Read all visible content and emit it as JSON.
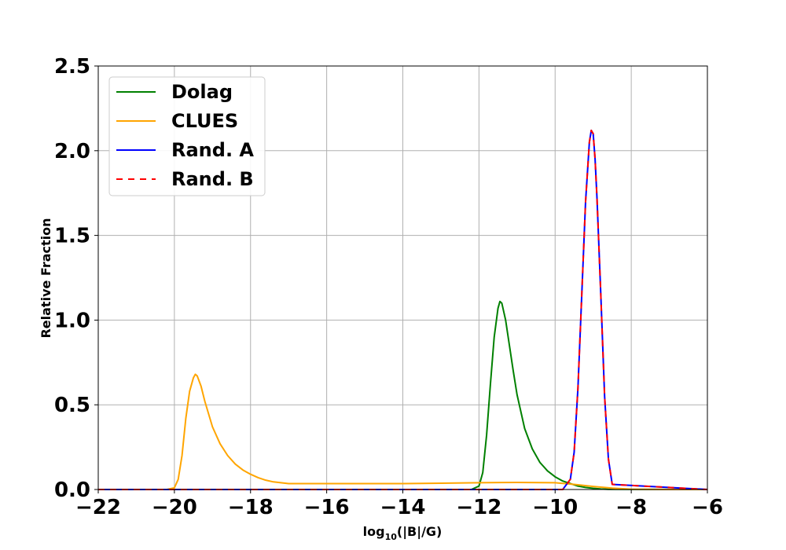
{
  "chart_data": {
    "type": "line",
    "title": "",
    "xlabel": "log10(|B|/G)",
    "xlabel_main": "log",
    "xlabel_sub": "10",
    "xlabel_rest": "(|B|/G)",
    "ylabel": "Relative Fraction",
    "xlim": [
      -22,
      -6
    ],
    "ylim": [
      0,
      2.5
    ],
    "xticks": [
      -22,
      -20,
      -18,
      -16,
      -14,
      -12,
      -10,
      -8,
      -6
    ],
    "xtick_labels": [
      "−22",
      "−20",
      "−18",
      "−16",
      "−14",
      "−12",
      "−10",
      "−8",
      "−6"
    ],
    "yticks": [
      0,
      0.5,
      1,
      1.5,
      2,
      2.5
    ],
    "ytick_labels": [
      "0.0",
      "0.5",
      "1.0",
      "1.5",
      "2.0",
      "2.5"
    ],
    "grid": true,
    "legend_position": "top-left",
    "series": [
      {
        "name": "Dolag",
        "color": "#008000",
        "style": "solid",
        "x": [
          -22,
          -12.2,
          -12.0,
          -11.9,
          -11.8,
          -11.7,
          -11.6,
          -11.5,
          -11.45,
          -11.4,
          -11.3,
          -11.2,
          -11.1,
          -11.0,
          -10.8,
          -10.6,
          -10.4,
          -10.2,
          -10.0,
          -9.8,
          -9.6,
          -9.4,
          -9.2,
          -9.0,
          -8.8,
          -8.6,
          -6
        ],
        "y": [
          0,
          0,
          0.02,
          0.1,
          0.32,
          0.62,
          0.9,
          1.07,
          1.11,
          1.1,
          1.0,
          0.85,
          0.7,
          0.56,
          0.36,
          0.24,
          0.16,
          0.11,
          0.075,
          0.05,
          0.035,
          0.02,
          0.012,
          0.007,
          0.003,
          0.001,
          0
        ]
      },
      {
        "name": "CLUES",
        "color": "#ffa500",
        "style": "solid",
        "x": [
          -22,
          -20.2,
          -20.0,
          -19.9,
          -19.8,
          -19.7,
          -19.6,
          -19.5,
          -19.45,
          -19.4,
          -19.3,
          -19.2,
          -19.0,
          -18.8,
          -18.6,
          -18.4,
          -18.2,
          -18.0,
          -17.8,
          -17.6,
          -17.4,
          -17.2,
          -17.0,
          -16.0,
          -15.0,
          -14.0,
          -13.0,
          -12.0,
          -11.0,
          -10.0,
          -9.5,
          -9.0,
          -8.5,
          -8.0,
          -7.0,
          -6
        ],
        "y": [
          0,
          0,
          0.01,
          0.06,
          0.2,
          0.42,
          0.58,
          0.66,
          0.68,
          0.67,
          0.61,
          0.52,
          0.37,
          0.27,
          0.2,
          0.15,
          0.115,
          0.09,
          0.07,
          0.055,
          0.045,
          0.04,
          0.035,
          0.035,
          0.035,
          0.035,
          0.037,
          0.04,
          0.042,
          0.04,
          0.03,
          0.018,
          0.008,
          0.002,
          0,
          0
        ]
      },
      {
        "name": "Rand. A",
        "color": "#0000ff",
        "style": "solid",
        "x": [
          -22,
          -9.8,
          -9.6,
          -9.5,
          -9.4,
          -9.3,
          -9.2,
          -9.1,
          -9.05,
          -9.0,
          -8.95,
          -8.9,
          -8.8,
          -8.7,
          -8.6,
          -8.5,
          -6
        ],
        "y": [
          0,
          0,
          0.06,
          0.22,
          0.6,
          1.15,
          1.7,
          2.05,
          2.12,
          2.1,
          1.95,
          1.72,
          1.15,
          0.55,
          0.18,
          0.03,
          0
        ]
      },
      {
        "name": "Rand. B",
        "color": "#ff0000",
        "style": "dashed",
        "x": [
          -22,
          -9.8,
          -9.6,
          -9.5,
          -9.4,
          -9.3,
          -9.2,
          -9.1,
          -9.05,
          -9.0,
          -8.95,
          -8.9,
          -8.8,
          -8.7,
          -8.6,
          -8.5,
          -6
        ],
        "y": [
          0,
          0,
          0.06,
          0.22,
          0.6,
          1.15,
          1.7,
          2.05,
          2.12,
          2.1,
          1.95,
          1.72,
          1.15,
          0.55,
          0.18,
          0.03,
          0
        ]
      }
    ]
  }
}
